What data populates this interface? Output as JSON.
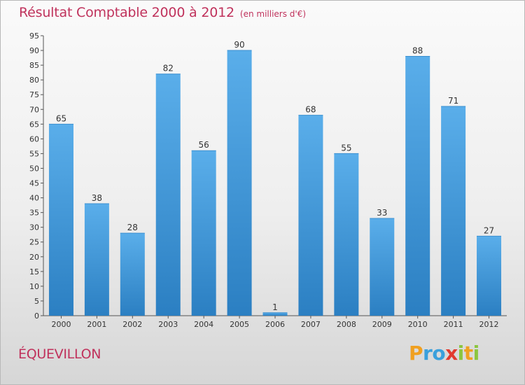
{
  "header": {
    "title": "Résultat Comptable 2000 à 2012",
    "unit_note": "(en milliers d'€)"
  },
  "commune": "ÉQUEVILLON",
  "logo": {
    "letters": [
      "P",
      "r",
      "o",
      "x",
      "i",
      "t",
      "i"
    ],
    "colors": [
      "#f0a020",
      "#3aa0dc",
      "#3aa0dc",
      "#e23a2e",
      "#8cc63f",
      "#f0a020",
      "#8cc63f"
    ]
  },
  "colors": {
    "bar_top": "#5aaeea",
    "bar_bottom": "#2b7fc2",
    "accent_text": "#c0325c"
  },
  "chart_data": {
    "type": "bar",
    "title": "Résultat Comptable 2000 à 2012",
    "subtitle": "(en milliers d'€)",
    "xlabel": "",
    "ylabel": "",
    "categories": [
      "2000",
      "2001",
      "2002",
      "2003",
      "2004",
      "2005",
      "2006",
      "2007",
      "2008",
      "2009",
      "2010",
      "2011",
      "2012"
    ],
    "values": [
      65,
      38,
      28,
      82,
      56,
      90,
      1,
      68,
      55,
      33,
      88,
      71,
      27
    ],
    "data_labels": [
      "65",
      "38",
      "28",
      "82",
      "56",
      "90",
      "1",
      "68",
      "55",
      "33",
      "88",
      "71",
      "27"
    ],
    "ylim": [
      0,
      95
    ],
    "yticks": [
      0,
      5,
      10,
      15,
      20,
      25,
      30,
      35,
      40,
      45,
      50,
      55,
      60,
      65,
      70,
      75,
      80,
      85,
      90,
      95
    ],
    "grid": false,
    "legend": "none"
  }
}
